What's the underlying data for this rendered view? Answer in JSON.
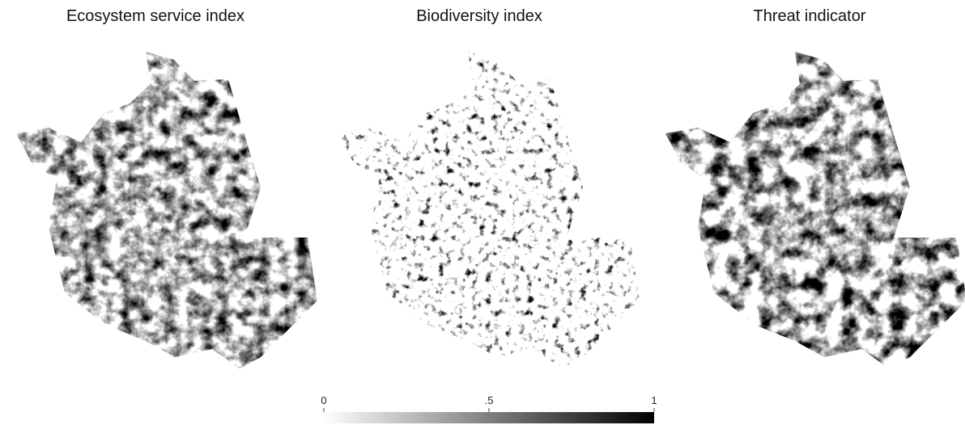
{
  "panels": [
    {
      "title": "Ecosystem service index"
    },
    {
      "title": "Biodiversity index"
    },
    {
      "title": "Threat indicator"
    }
  ],
  "colorbar": {
    "lim": [
      0,
      1
    ],
    "ticks": [
      0,
      {
        "value": 0.5,
        "label": ".5"
      },
      1
    ]
  }
}
